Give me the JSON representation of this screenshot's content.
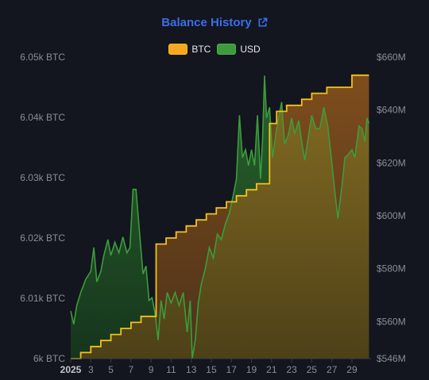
{
  "title": "Balance History",
  "legend": [
    {
      "label": "BTC",
      "fill": "#f5a623",
      "stroke": "#ffc107"
    },
    {
      "label": "USD",
      "fill": "#3e9a3e",
      "stroke": "#4caf50"
    }
  ],
  "colors": {
    "background": "#13151f",
    "title": "#3b6ee8",
    "axis_text": "#8a8d99",
    "btc_fill": "#c56a16",
    "btc_line": "#f2c21b",
    "usd_fill": "#1f5a24",
    "usd_line": "#3c9c3c"
  },
  "chart_data": {
    "type": "area",
    "title": "Balance History",
    "x_ticks": [
      {
        "day": 1,
        "label": "2025"
      },
      {
        "day": 3,
        "label": "3"
      },
      {
        "day": 5,
        "label": "5"
      },
      {
        "day": 7,
        "label": "7"
      },
      {
        "day": 9,
        "label": "9"
      },
      {
        "day": 11,
        "label": "11"
      },
      {
        "day": 13,
        "label": "13"
      },
      {
        "day": 15,
        "label": "15"
      },
      {
        "day": 17,
        "label": "17"
      },
      {
        "day": 19,
        "label": "19"
      },
      {
        "day": 21,
        "label": "21"
      },
      {
        "day": 23,
        "label": "23"
      },
      {
        "day": 25,
        "label": "25"
      },
      {
        "day": 27,
        "label": "27"
      },
      {
        "day": 29,
        "label": "29"
      }
    ],
    "xlim": [
      1,
      30.9
    ],
    "y_left": {
      "unit": "BTC",
      "range": [
        6000,
        6050
      ],
      "ticks": [
        {
          "value": 6000,
          "label": "6k BTC"
        },
        {
          "value": 6010,
          "label": "6.01k BTC"
        },
        {
          "value": 6020,
          "label": "6.02k BTC"
        },
        {
          "value": 6030,
          "label": "6.03k BTC"
        },
        {
          "value": 6040,
          "label": "6.04k BTC"
        },
        {
          "value": 6050,
          "label": "6.05k BTC"
        }
      ]
    },
    "y_right": {
      "unit": "USD",
      "range": [
        546,
        660
      ],
      "ticks": [
        {
          "value": 546,
          "label": "$546M"
        },
        {
          "value": 560,
          "label": "$560M"
        },
        {
          "value": 580,
          "label": "$580M"
        },
        {
          "value": 600,
          "label": "$600M"
        },
        {
          "value": 620,
          "label": "$620M"
        },
        {
          "value": 640,
          "label": "$640M"
        },
        {
          "value": 660,
          "label": "$660M"
        }
      ]
    },
    "series": [
      {
        "name": "BTC",
        "axis": "left",
        "step": true,
        "points": [
          [
            1,
            6000
          ],
          [
            2,
            6001
          ],
          [
            3,
            6002
          ],
          [
            4,
            6003
          ],
          [
            5,
            6004
          ],
          [
            6,
            6005
          ],
          [
            7,
            6006
          ],
          [
            8,
            6007
          ],
          [
            9.5,
            6019
          ],
          [
            10.5,
            6020
          ],
          [
            11.5,
            6021
          ],
          [
            12.5,
            6022
          ],
          [
            13.5,
            6023
          ],
          [
            14.5,
            6024
          ],
          [
            15.5,
            6025
          ],
          [
            16.5,
            6026
          ],
          [
            17.5,
            6027
          ],
          [
            18.5,
            6028
          ],
          [
            19.5,
            6029
          ],
          [
            20.8,
            6039
          ],
          [
            21.5,
            6041
          ],
          [
            22.5,
            6042
          ],
          [
            24,
            6043
          ],
          [
            25,
            6044
          ],
          [
            26.5,
            6045
          ],
          [
            29,
            6047
          ],
          [
            30.7,
            6047
          ]
        ]
      },
      {
        "name": "USD",
        "axis": "right",
        "points": [
          [
            1,
            564
          ],
          [
            1.3,
            559
          ],
          [
            1.6,
            566
          ],
          [
            2,
            571
          ],
          [
            2.5,
            576
          ],
          [
            3,
            579
          ],
          [
            3.3,
            588
          ],
          [
            3.6,
            575
          ],
          [
            4,
            579
          ],
          [
            4.3,
            585
          ],
          [
            4.7,
            591
          ],
          [
            5,
            585
          ],
          [
            5.4,
            590
          ],
          [
            5.8,
            586
          ],
          [
            6.2,
            592
          ],
          [
            6.6,
            586
          ],
          [
            6.9,
            588
          ],
          [
            7.2,
            610
          ],
          [
            7.5,
            610
          ],
          [
            7.8,
            596
          ],
          [
            8.2,
            578
          ],
          [
            8.5,
            581
          ],
          [
            8.8,
            568
          ],
          [
            9.1,
            569
          ],
          [
            9.4,
            563
          ],
          [
            9.7,
            553
          ],
          [
            10,
            568
          ],
          [
            10.3,
            561
          ],
          [
            10.6,
            571
          ],
          [
            11,
            567
          ],
          [
            11.4,
            571
          ],
          [
            11.8,
            566
          ],
          [
            12.2,
            571
          ],
          [
            12.6,
            556
          ],
          [
            12.9,
            568
          ],
          [
            13.1,
            546
          ],
          [
            13.4,
            553
          ],
          [
            13.7,
            567
          ],
          [
            14,
            574
          ],
          [
            14.4,
            580
          ],
          [
            14.8,
            588
          ],
          [
            15.2,
            584
          ],
          [
            15.6,
            593
          ],
          [
            16,
            591
          ],
          [
            16.4,
            597
          ],
          [
            16.8,
            601
          ],
          [
            17.2,
            608
          ],
          [
            17.5,
            614
          ],
          [
            17.8,
            638
          ],
          [
            18.1,
            622
          ],
          [
            18.4,
            625
          ],
          [
            18.7,
            619
          ],
          [
            19,
            625
          ],
          [
            19.3,
            619
          ],
          [
            19.6,
            638
          ],
          [
            19.9,
            614
          ],
          [
            20.1,
            629
          ],
          [
            20.3,
            653
          ],
          [
            20.5,
            637
          ],
          [
            20.8,
            641
          ],
          [
            21.1,
            622
          ],
          [
            21.5,
            633
          ],
          [
            22,
            643
          ],
          [
            22.3,
            627
          ],
          [
            22.7,
            631
          ],
          [
            23,
            637
          ],
          [
            23.3,
            631
          ],
          [
            23.7,
            636
          ],
          [
            24,
            628
          ],
          [
            24.3,
            621
          ],
          [
            24.7,
            631
          ],
          [
            25,
            638
          ],
          [
            25.4,
            633
          ],
          [
            25.8,
            633
          ],
          [
            26.2,
            641
          ],
          [
            26.6,
            634
          ],
          [
            27,
            620
          ],
          [
            27.3,
            609
          ],
          [
            27.6,
            599
          ],
          [
            28,
            611
          ],
          [
            28.3,
            622
          ],
          [
            28.6,
            623
          ],
          [
            29,
            625
          ],
          [
            29.3,
            622
          ],
          [
            29.7,
            634
          ],
          [
            30,
            633
          ],
          [
            30.3,
            628
          ],
          [
            30.5,
            637
          ],
          [
            30.7,
            635
          ]
        ]
      }
    ],
    "legend_position": "top-center",
    "grid": false
  }
}
